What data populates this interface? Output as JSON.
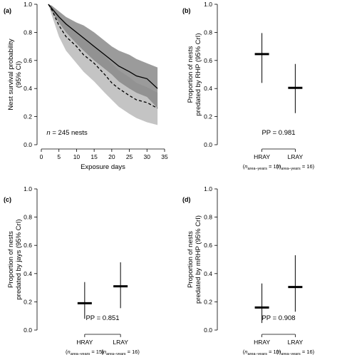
{
  "chart_data": [
    {
      "panel": "(a)",
      "type": "line",
      "xlabel": "Exposure days",
      "ylabel": [
        "Nest survival probability",
        "(95% CI)"
      ],
      "xlim": [
        0,
        35
      ],
      "ylim": [
        0,
        1.0
      ],
      "xticks": [
        0,
        5,
        10,
        15,
        20,
        25,
        30,
        35
      ],
      "yticks": [
        0.0,
        0.2,
        0.4,
        0.6,
        0.8,
        1.0
      ],
      "annotation": {
        "italic": "n",
        "rest": " = 245 nests"
      },
      "x": [
        2,
        3,
        5,
        7,
        10,
        12,
        15,
        18,
        20,
        22,
        25,
        27,
        30,
        33
      ],
      "series": [
        {
          "line": "solid",
          "color": "#000000",
          "values": [
            1.0,
            0.97,
            0.91,
            0.86,
            0.8,
            0.76,
            0.7,
            0.64,
            0.6,
            0.56,
            0.52,
            0.49,
            0.47,
            0.4
          ],
          "lower": [
            1.0,
            0.95,
            0.87,
            0.8,
            0.72,
            0.67,
            0.6,
            0.54,
            0.5,
            0.45,
            0.4,
            0.37,
            0.34,
            0.26
          ],
          "upper": [
            1.0,
            0.99,
            0.95,
            0.91,
            0.87,
            0.85,
            0.8,
            0.74,
            0.7,
            0.67,
            0.64,
            0.61,
            0.58,
            0.55
          ],
          "band_color": "#8a8a8a"
        },
        {
          "line": "dashed",
          "color": "#000000",
          "values": [
            1.0,
            0.96,
            0.85,
            0.77,
            0.7,
            0.64,
            0.58,
            0.5,
            0.44,
            0.4,
            0.35,
            0.32,
            0.3,
            0.26
          ],
          "lower": [
            1.0,
            0.92,
            0.77,
            0.67,
            0.58,
            0.52,
            0.45,
            0.37,
            0.32,
            0.27,
            0.22,
            0.19,
            0.16,
            0.14
          ],
          "upper": [
            1.0,
            0.99,
            0.92,
            0.87,
            0.8,
            0.76,
            0.7,
            0.63,
            0.58,
            0.53,
            0.48,
            0.44,
            0.41,
            0.37
          ],
          "band_color": "#c4c4c4"
        }
      ]
    },
    {
      "panel": "(b)",
      "type": "point-interval",
      "ylabel": [
        "Proportion of nests",
        "predated by RHP (95% CrI)"
      ],
      "ylim": [
        0,
        1.0
      ],
      "yticks": [
        0.0,
        0.2,
        0.4,
        0.6,
        0.8,
        1.0
      ],
      "categories": [
        "HRAY",
        "LRAY"
      ],
      "sample_sizes": [
        "15",
        "16"
      ],
      "n_label": {
        "n": "n",
        "sub": "area–years"
      },
      "values": [
        0.645,
        0.405
      ],
      "lower": [
        0.44,
        0.225
      ],
      "upper": [
        0.795,
        0.575
      ],
      "annotation": "PP = 0.981"
    },
    {
      "panel": "(c)",
      "type": "point-interval",
      "ylabel": [
        "Proportion of nests",
        "predated by jays (95% CrI)"
      ],
      "ylim": [
        0,
        1.0
      ],
      "yticks": [
        0.0,
        0.2,
        0.4,
        0.6,
        0.8,
        1.0
      ],
      "categories": [
        "HRAY",
        "LRAY"
      ],
      "sample_sizes": [
        "15",
        "16"
      ],
      "n_label": {
        "n": "n",
        "sub": "area–years"
      },
      "values": [
        0.19,
        0.31
      ],
      "lower": [
        0.08,
        0.155
      ],
      "upper": [
        0.34,
        0.48
      ],
      "annotation": "PP = 0.851"
    },
    {
      "panel": "(d)",
      "type": "point-interval",
      "ylabel": [
        "Proportion of nests",
        "predated by mRHP (95% CrI)"
      ],
      "ylim": [
        0,
        1.0
      ],
      "yticks": [
        0.0,
        0.2,
        0.4,
        0.6,
        0.8,
        1.0
      ],
      "categories": [
        "HRAY",
        "LRAY"
      ],
      "sample_sizes": [
        "15",
        "16"
      ],
      "n_label": {
        "n": "n",
        "sub": "area–years"
      },
      "values": [
        0.16,
        0.305
      ],
      "lower": [
        0.05,
        0.13
      ],
      "upper": [
        0.33,
        0.53
      ],
      "annotation": "PP = 0.908"
    }
  ]
}
